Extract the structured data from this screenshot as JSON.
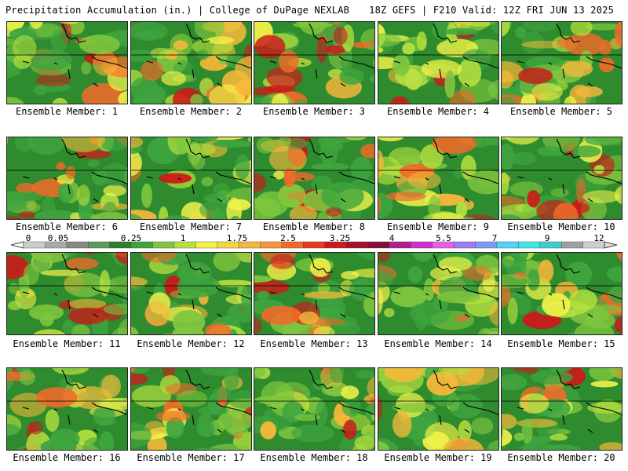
{
  "header": {
    "left": "Precipitation Accumulation (in.) | College of DuPage NEXLAB",
    "right": "18Z GEFS | F210 Valid: 12Z FRI JUN 13 2025"
  },
  "colors": {
    "ocean_green": "#2e8b2e",
    "scale": [
      "#cccccc",
      "#aaaaaa",
      "#888888",
      "#5b9b5b",
      "#2e7f2e",
      "#3fa53f",
      "#7fc63f",
      "#b5e03f",
      "#f3f34a",
      "#f5d53a",
      "#f5b83a",
      "#f5973a",
      "#f26a2a",
      "#e63b1f",
      "#cc1a1a",
      "#a80f2a",
      "#8a0a3a",
      "#b0208f",
      "#d22fd2",
      "#e65fe6",
      "#a07af5",
      "#7a9cf5",
      "#52d3f5",
      "#3fe6e6",
      "#3fcccc",
      "#a0a0a0",
      "#cfcfcf"
    ]
  },
  "colorbar": {
    "tick_labels": [
      "0",
      "0.05",
      "0.25",
      "1",
      "1.75",
      "2.5",
      "3.25",
      "4",
      "5.5",
      "7",
      "9",
      "12"
    ]
  },
  "panels": [
    {
      "label": "Ensemble Member: 1"
    },
    {
      "label": "Ensemble Member: 2"
    },
    {
      "label": "Ensemble Member: 3"
    },
    {
      "label": "Ensemble Member: 4"
    },
    {
      "label": "Ensemble Member: 5"
    },
    {
      "label": "Ensemble Member: 6"
    },
    {
      "label": "Ensemble Member: 7"
    },
    {
      "label": "Ensemble Member: 8"
    },
    {
      "label": "Ensemble Member: 9"
    },
    {
      "label": "Ensemble Member: 10"
    },
    {
      "label": "Ensemble Member: 11"
    },
    {
      "label": "Ensemble Member: 12"
    },
    {
      "label": "Ensemble Member: 13"
    },
    {
      "label": "Ensemble Member: 14"
    },
    {
      "label": "Ensemble Member: 15"
    },
    {
      "label": "Ensemble Member: 16"
    },
    {
      "label": "Ensemble Member: 17"
    },
    {
      "label": "Ensemble Member: 18"
    },
    {
      "label": "Ensemble Member: 19"
    },
    {
      "label": "Ensemble Member: 20"
    }
  ]
}
